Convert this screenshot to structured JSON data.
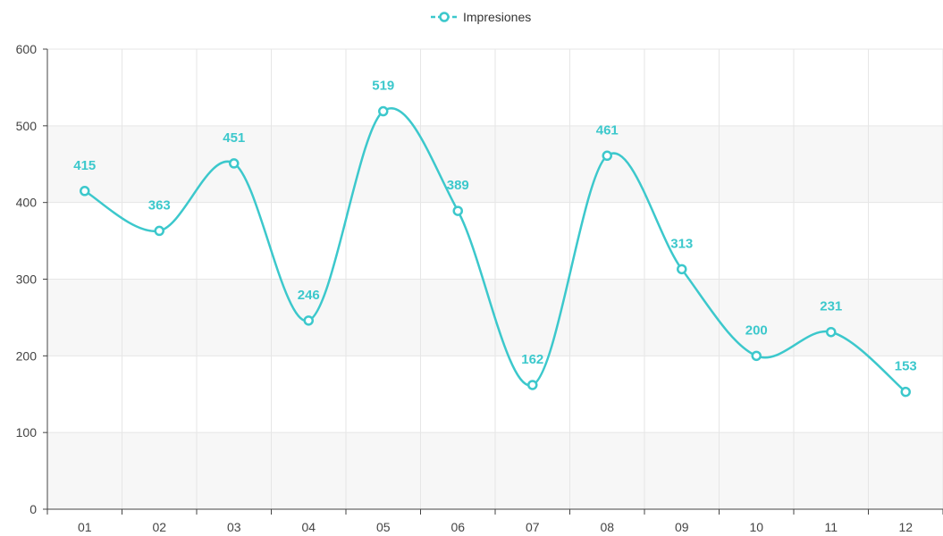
{
  "chart_data": {
    "type": "line",
    "smooth": true,
    "categories": [
      "01",
      "02",
      "03",
      "04",
      "05",
      "06",
      "07",
      "08",
      "09",
      "10",
      "11",
      "12"
    ],
    "series": [
      {
        "name": "Impresiones",
        "values": [
          415,
          363,
          451,
          246,
          519,
          389,
          162,
          461,
          313,
          200,
          231,
          153
        ]
      }
    ],
    "ylim": [
      0,
      600
    ],
    "yticks": [
      "0",
      "100",
      "200",
      "300",
      "400",
      "500",
      "600"
    ],
    "grid": true,
    "data_labels": true,
    "legend_position": "top-center",
    "title": "",
    "xlabel": "",
    "ylabel": ""
  },
  "colors": {
    "series": "#3cc8cc",
    "band": "#f7f7f7",
    "grid": "#e6e6e6",
    "axis": "#444444"
  }
}
